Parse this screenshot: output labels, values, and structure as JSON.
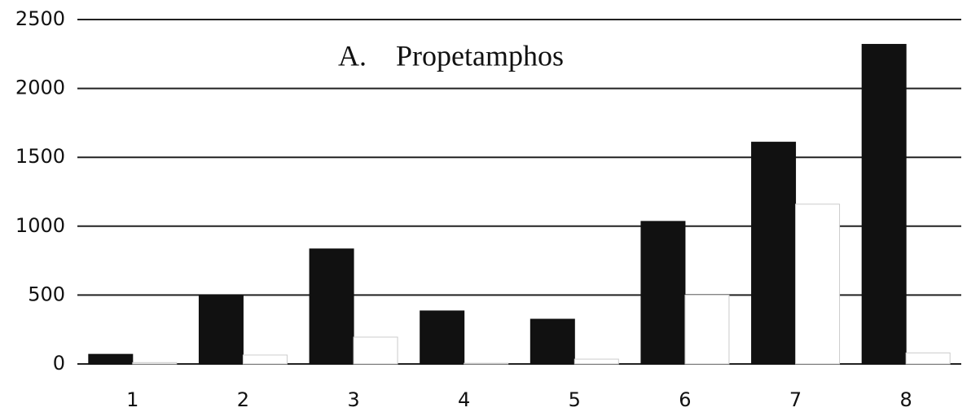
{
  "chart_data": {
    "type": "bar",
    "title": "A.    Propetamphos",
    "categories": [
      "1",
      "2",
      "3",
      "4",
      "5",
      "6",
      "7",
      "8"
    ],
    "series": [
      {
        "color": "#111111",
        "values": [
          70,
          500,
          835,
          385,
          325,
          1035,
          1610,
          2320
        ]
      },
      {
        "color": "#ffffff",
        "values": [
          10,
          65,
          195,
          5,
          35,
          500,
          1160,
          80
        ]
      }
    ],
    "ylim": [
      0,
      2500
    ],
    "yticks": [
      0,
      500,
      1000,
      1500,
      2000,
      2500
    ],
    "grid": true
  }
}
